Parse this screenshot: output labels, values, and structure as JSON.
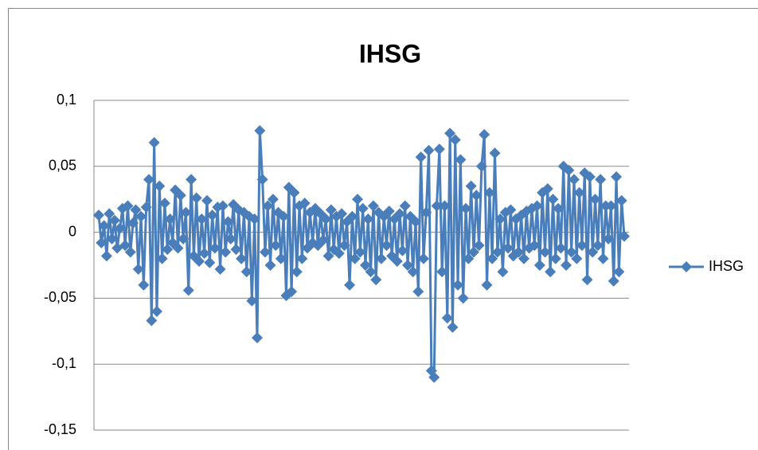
{
  "chart_data": {
    "type": "line",
    "title": "IHSG",
    "series": [
      {
        "name": "IHSG",
        "color": "#4a7ebb",
        "values": [
          0.013,
          -0.008,
          0.005,
          -0.018,
          0.014,
          -0.005,
          0.009,
          -0.012,
          0.003,
          0.018,
          -0.01,
          0.02,
          -0.015,
          0.007,
          0.017,
          -0.028,
          0.012,
          -0.04,
          0.019,
          0.04,
          -0.067,
          0.068,
          -0.06,
          0.035,
          -0.02,
          0.022,
          -0.013,
          0.01,
          -0.008,
          0.032,
          -0.012,
          0.028,
          -0.005,
          0.015,
          -0.044,
          0.04,
          -0.018,
          0.026,
          -0.022,
          0.01,
          -0.016,
          0.024,
          -0.023,
          0.013,
          -0.012,
          0.019,
          -0.028,
          0.02,
          -0.015,
          0.008,
          -0.005,
          0.021,
          -0.013,
          0.017,
          -0.02,
          0.015,
          -0.03,
          0.012,
          -0.052,
          0.01,
          -0.08,
          0.077,
          0.04,
          -0.015,
          0.02,
          -0.025,
          0.025,
          -0.01,
          0.015,
          -0.02,
          0.012,
          -0.048,
          0.034,
          -0.045,
          0.03,
          -0.03,
          0.02,
          -0.02,
          0.022,
          -0.012,
          0.015,
          -0.008,
          0.018,
          -0.01,
          0.014,
          -0.006,
          0.01,
          -0.018,
          0.017,
          -0.013,
          0.012,
          -0.016,
          0.014,
          -0.01,
          0.008,
          -0.04,
          0.012,
          -0.02,
          0.025,
          -0.015,
          0.018,
          -0.025,
          0.01,
          -0.03,
          0.02,
          -0.036,
          0.015,
          -0.02,
          0.012,
          -0.01,
          0.016,
          -0.018,
          0.01,
          -0.022,
          0.014,
          -0.014,
          0.02,
          -0.025,
          0.012,
          -0.03,
          0.008,
          -0.045,
          0.057,
          -0.02,
          0.015,
          0.062,
          -0.105,
          -0.11,
          0.02,
          0.063,
          -0.03,
          0.02,
          -0.065,
          0.075,
          -0.072,
          0.07,
          -0.04,
          0.055,
          -0.05,
          0.018,
          -0.02,
          0.035,
          -0.015,
          0.028,
          -0.01,
          0.05,
          0.074,
          -0.04,
          0.03,
          -0.02,
          0.06,
          -0.015,
          0.01,
          -0.03,
          0.015,
          -0.012,
          0.017,
          -0.018,
          0.01,
          -0.015,
          0.013,
          -0.02,
          0.016,
          -0.012,
          0.018,
          -0.01,
          0.02,
          -0.025,
          0.03,
          -0.015,
          0.033,
          -0.03,
          0.025,
          -0.02,
          0.018,
          -0.012,
          0.05,
          -0.025,
          0.047,
          -0.015,
          0.04,
          -0.02,
          0.03,
          -0.01,
          0.045,
          -0.036,
          0.042,
          -0.015,
          0.025,
          -0.01,
          0.04,
          -0.02,
          0.02,
          -0.005,
          0.02,
          -0.037,
          0.042,
          -0.03,
          0.024,
          -0.003
        ]
      }
    ],
    "ylim": [
      -0.15,
      0.1
    ],
    "yticks": [
      {
        "value": -0.15,
        "label": "-0,15"
      },
      {
        "value": -0.1,
        "label": "-0,1"
      },
      {
        "value": -0.05,
        "label": "-0,05"
      },
      0,
      {
        "value": 0.05,
        "label": "0,05"
      },
      {
        "value": 0.1,
        "label": "0,1"
      }
    ],
    "grid": true,
    "legend": "right"
  }
}
